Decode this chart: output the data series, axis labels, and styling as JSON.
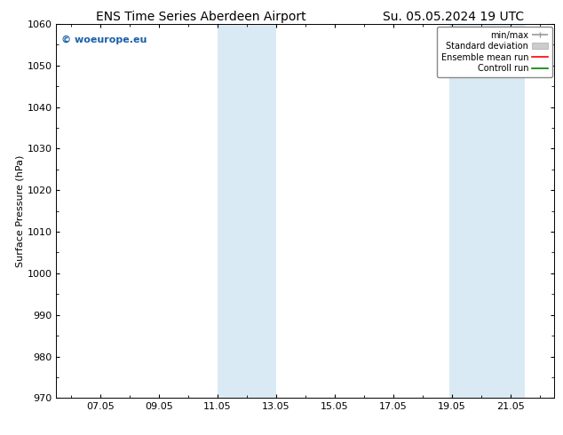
{
  "title_left": "ENS Time Series Aberdeen Airport",
  "title_right": "Su. 05.05.2024 19 UTC",
  "ylabel": "Surface Pressure (hPa)",
  "ylim": [
    970,
    1060
  ],
  "yticks": [
    970,
    980,
    990,
    1000,
    1010,
    1020,
    1030,
    1040,
    1050,
    1060
  ],
  "xlim": [
    5.5,
    22.5
  ],
  "xtick_labels": [
    "07.05",
    "09.05",
    "11.05",
    "13.05",
    "15.05",
    "17.05",
    "19.05",
    "21.05"
  ],
  "xtick_positions": [
    7,
    9,
    11,
    13,
    15,
    17,
    19,
    21
  ],
  "shade_bands": [
    {
      "x_start": 11.0,
      "x_end": 13.0
    },
    {
      "x_start": 18.9,
      "x_end": 21.5
    }
  ],
  "shade_color": "#daeaf5",
  "watermark_text": "© woeurope.eu",
  "watermark_color": "#1a5fa8",
  "background_color": "#ffffff",
  "legend_entries": [
    {
      "label": "min/max",
      "color": "#999999",
      "style": "hline"
    },
    {
      "label": "Standard deviation",
      "color": "#cccccc",
      "style": "filled"
    },
    {
      "label": "Ensemble mean run",
      "color": "#ff0000",
      "style": "line"
    },
    {
      "label": "Controll run",
      "color": "#008000",
      "style": "line"
    }
  ],
  "spine_color": "#000000",
  "tick_color": "#000000",
  "font_size_title": 10,
  "font_size_ticks": 8,
  "font_size_ylabel": 8,
  "font_size_legend": 7,
  "font_size_watermark": 8
}
